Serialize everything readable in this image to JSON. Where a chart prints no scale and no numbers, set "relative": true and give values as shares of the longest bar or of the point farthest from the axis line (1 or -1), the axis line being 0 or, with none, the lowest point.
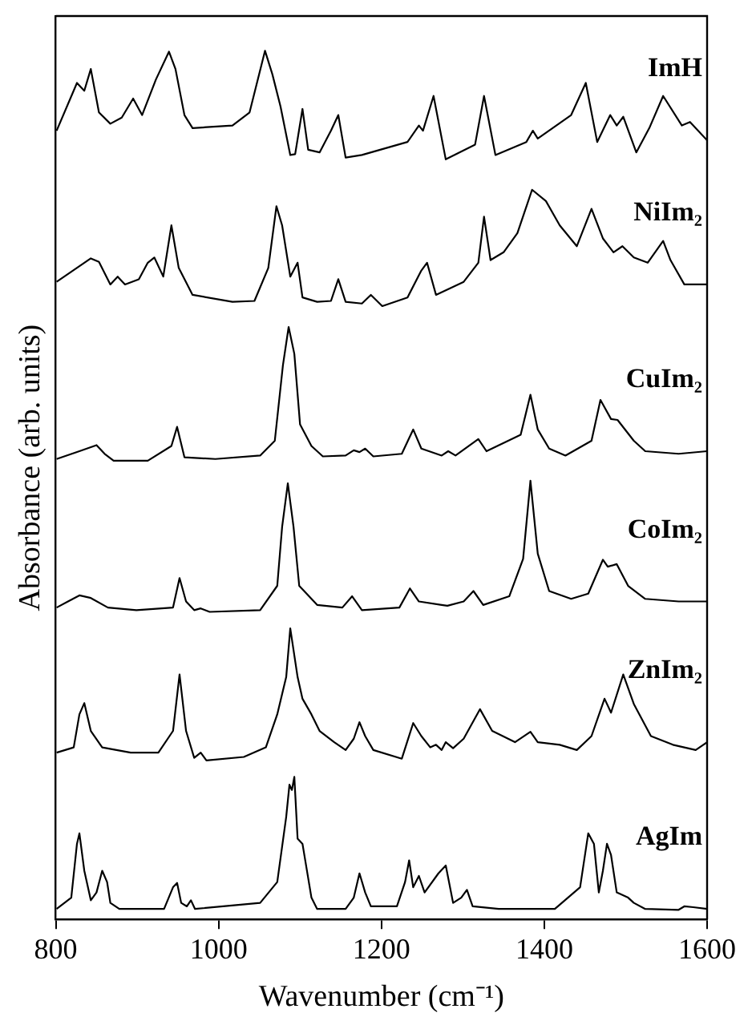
{
  "chart_data": {
    "type": "line",
    "relative": true,
    "xlabel": "Wavenumber (cm⁻¹)",
    "ylabel": "Absorbance (arb. units)",
    "xlim": [
      800,
      1600
    ],
    "xticks": [
      800,
      1000,
      1200,
      1400,
      1600
    ],
    "tick_labels": "x",
    "grid": false,
    "legend": false,
    "marker": "none",
    "line_style": "solid",
    "series": [
      {
        "name": "ImH",
        "color": "#000000",
        "x": [
          801,
          826,
          835,
          843,
          853,
          867,
          881,
          895,
          906,
          923,
          939,
          947,
          958,
          968,
          1017,
          1038,
          1057,
          1066,
          1076,
          1088,
          1094,
          1103,
          1110,
          1124,
          1138,
          1147,
          1156,
          1176,
          1232,
          1246,
          1251,
          1264,
          1279,
          1315,
          1326,
          1340,
          1378,
          1386,
          1392,
          1433,
          1451,
          1465,
          1481,
          1489,
          1497,
          1513,
          1529,
          1546,
          1569,
          1579,
          1600
        ],
        "values": [
          0.908,
          0.963,
          0.954,
          0.979,
          0.929,
          0.916,
          0.923,
          0.945,
          0.926,
          0.967,
          0.999,
          0.979,
          0.926,
          0.911,
          0.914,
          0.929,
          1,
          0.973,
          0.936,
          0.88,
          0.881,
          0.933,
          0.886,
          0.883,
          0.908,
          0.926,
          0.877,
          0.88,
          0.895,
          0.914,
          0.908,
          0.948,
          0.875,
          0.892,
          0.948,
          0.88,
          0.895,
          0.908,
          0.899,
          0.926,
          0.963,
          0.895,
          0.926,
          0.914,
          0.924,
          0.883,
          0.911,
          0.948,
          0.914,
          0.918,
          0.897
        ]
      },
      {
        "name": "NiIm₂",
        "color": "#000000",
        "x": [
          801,
          843,
          853,
          867,
          876,
          885,
          902,
          913,
          921,
          932,
          942,
          951,
          968,
          1017,
          1044,
          1061,
          1071,
          1078,
          1088,
          1097,
          1103,
          1121,
          1138,
          1147,
          1156,
          1176,
          1187,
          1201,
          1232,
          1249,
          1256,
          1267,
          1301,
          1319,
          1326,
          1334,
          1350,
          1367,
          1385,
          1402,
          1419,
          1440,
          1458,
          1472,
          1485,
          1496,
          1510,
          1527,
          1546,
          1555,
          1572,
          1600
        ],
        "values": [
          0.734,
          0.761,
          0.757,
          0.731,
          0.74,
          0.731,
          0.737,
          0.756,
          0.762,
          0.74,
          0.799,
          0.75,
          0.719,
          0.711,
          0.712,
          0.75,
          0.821,
          0.799,
          0.74,
          0.756,
          0.716,
          0.711,
          0.712,
          0.737,
          0.711,
          0.709,
          0.719,
          0.706,
          0.716,
          0.747,
          0.756,
          0.719,
          0.734,
          0.756,
          0.809,
          0.759,
          0.768,
          0.79,
          0.84,
          0.827,
          0.799,
          0.775,
          0.818,
          0.784,
          0.768,
          0.775,
          0.762,
          0.756,
          0.781,
          0.759,
          0.731,
          0.731
        ]
      },
      {
        "name": "CuIm₂",
        "color": "#000000",
        "x": [
          801,
          829,
          850,
          860,
          871,
          913,
          942,
          949,
          958,
          996,
          1051,
          1069,
          1079,
          1086,
          1093,
          1100,
          1114,
          1128,
          1156,
          1166,
          1173,
          1180,
          1190,
          1225,
          1239,
          1249,
          1274,
          1282,
          1291,
          1319,
          1329,
          1371,
          1383,
          1392,
          1406,
          1426,
          1458,
          1469,
          1482,
          1490,
          1510,
          1524,
          1565,
          1600
        ],
        "values": [
          0.53,
          0.539,
          0.546,
          0.536,
          0.528,
          0.528,
          0.545,
          0.567,
          0.532,
          0.53,
          0.534,
          0.551,
          0.638,
          0.682,
          0.651,
          0.57,
          0.545,
          0.533,
          0.534,
          0.54,
          0.538,
          0.542,
          0.533,
          0.536,
          0.564,
          0.542,
          0.534,
          0.539,
          0.534,
          0.553,
          0.539,
          0.558,
          0.604,
          0.564,
          0.542,
          0.534,
          0.551,
          0.598,
          0.576,
          0.575,
          0.551,
          0.539,
          0.536,
          0.539
        ]
      },
      {
        "name": "CoIm₂",
        "color": "#000000",
        "x": [
          801,
          815,
          829,
          843,
          864,
          899,
          944,
          952,
          960,
          970,
          978,
          989,
          1051,
          1072,
          1078,
          1085,
          1092,
          1099,
          1121,
          1152,
          1164,
          1176,
          1222,
          1235,
          1246,
          1274,
          1281,
          1301,
          1313,
          1325,
          1357,
          1374,
          1383,
          1392,
          1406,
          1433,
          1454,
          1472,
          1478,
          1489,
          1503,
          1524,
          1565,
          1600
        ],
        "values": [
          0.359,
          0.366,
          0.373,
          0.37,
          0.359,
          0.356,
          0.359,
          0.393,
          0.366,
          0.356,
          0.358,
          0.354,
          0.356,
          0.384,
          0.452,
          0.502,
          0.452,
          0.384,
          0.362,
          0.359,
          0.372,
          0.356,
          0.359,
          0.381,
          0.366,
          0.362,
          0.361,
          0.366,
          0.378,
          0.362,
          0.372,
          0.415,
          0.505,
          0.421,
          0.378,
          0.369,
          0.375,
          0.414,
          0.406,
          0.409,
          0.384,
          0.369,
          0.366,
          0.366
        ]
      },
      {
        "name": "ZnIm₂",
        "color": "#000000",
        "x": [
          801,
          822,
          829,
          835,
          843,
          857,
          892,
          926,
          944,
          952,
          960,
          970,
          978,
          985,
          1031,
          1058,
          1072,
          1083,
          1088,
          1097,
          1103,
          1114,
          1124,
          1142,
          1156,
          1166,
          1173,
          1180,
          1190,
          1225,
          1239,
          1249,
          1260,
          1267,
          1274,
          1279,
          1288,
          1301,
          1321,
          1336,
          1364,
          1383,
          1392,
          1419,
          1440,
          1458,
          1474,
          1482,
          1497,
          1510,
          1531,
          1558,
          1586,
          1600
        ],
        "values": [
          0.192,
          0.198,
          0.236,
          0.249,
          0.217,
          0.198,
          0.192,
          0.192,
          0.217,
          0.282,
          0.217,
          0.186,
          0.192,
          0.183,
          0.187,
          0.198,
          0.236,
          0.279,
          0.335,
          0.279,
          0.254,
          0.236,
          0.217,
          0.204,
          0.195,
          0.208,
          0.227,
          0.211,
          0.195,
          0.185,
          0.226,
          0.211,
          0.198,
          0.201,
          0.195,
          0.204,
          0.197,
          0.208,
          0.242,
          0.217,
          0.204,
          0.216,
          0.204,
          0.201,
          0.195,
          0.211,
          0.254,
          0.238,
          0.282,
          0.248,
          0.211,
          0.201,
          0.195,
          0.204
        ]
      },
      {
        "name": "AgIm",
        "color": "#000000",
        "x": [
          801,
          819,
          826,
          829,
          835,
          843,
          850,
          857,
          863,
          867,
          878,
          933,
          944,
          949,
          954,
          961,
          966,
          971,
          1051,
          1072,
          1083,
          1087,
          1090,
          1093,
          1097,
          1103,
          1114,
          1121,
          1156,
          1166,
          1173,
          1180,
          1187,
          1219,
          1229,
          1234,
          1239,
          1246,
          1253,
          1270,
          1279,
          1288,
          1298,
          1305,
          1312,
          1344,
          1413,
          1444,
          1454,
          1461,
          1467,
          1472,
          1477,
          1482,
          1489,
          1503,
          1510,
          1524,
          1565,
          1572,
          1583,
          1600
        ],
        "values": [
          0.012,
          0.025,
          0.087,
          0.099,
          0.056,
          0.022,
          0.031,
          0.056,
          0.043,
          0.019,
          0.012,
          0.012,
          0.037,
          0.042,
          0.019,
          0.015,
          0.022,
          0.012,
          0.019,
          0.043,
          0.118,
          0.155,
          0.149,
          0.164,
          0.093,
          0.087,
          0.025,
          0.012,
          0.012,
          0.025,
          0.053,
          0.031,
          0.015,
          0.015,
          0.043,
          0.068,
          0.037,
          0.05,
          0.031,
          0.053,
          0.062,
          0.019,
          0.025,
          0.034,
          0.015,
          0.012,
          0.012,
          0.037,
          0.099,
          0.087,
          0.031,
          0.056,
          0.087,
          0.074,
          0.031,
          0.025,
          0.019,
          0.012,
          0.011,
          0.015,
          0.014,
          0.012
        ]
      }
    ]
  }
}
